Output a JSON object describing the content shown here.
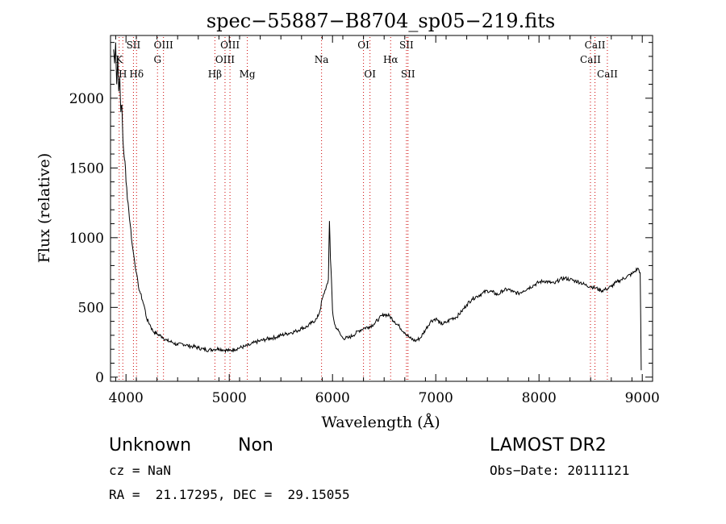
{
  "chart_data": {
    "type": "line",
    "title": "spec−55887−B8704_sp05−219.fits",
    "xlabel": "Wavelength (Å)",
    "ylabel": "Flux (relative)",
    "xlim": [
      3850,
      9100
    ],
    "ylim": [
      -30,
      2450
    ],
    "x_ticks": [
      4000,
      5000,
      6000,
      7000,
      8000,
      9000
    ],
    "y_ticks": [
      0,
      500,
      1000,
      1500,
      2000
    ],
    "grid": false,
    "series": [
      {
        "x": [
          3880,
          3890,
          3900,
          3910,
          3920,
          3930,
          3940,
          3950,
          3960,
          3970,
          3980,
          3990,
          4000,
          4020,
          4040,
          4060,
          4080,
          4100,
          4120,
          4140,
          4160,
          4180,
          4200,
          4230,
          4260,
          4300,
          4350,
          4400,
          4450,
          4500,
          4550,
          4600,
          4650,
          4700,
          4750,
          4800,
          4850,
          4900,
          4950,
          5000,
          5050,
          5100,
          5150,
          5200,
          5250,
          5300,
          5350,
          5400,
          5450,
          5500,
          5550,
          5600,
          5650,
          5700,
          5750,
          5800,
          5850,
          5880,
          5900,
          5920,
          5940,
          5960,
          5970,
          5980,
          5990,
          6000,
          6010,
          6020,
          6040,
          6060,
          6080,
          6100,
          6150,
          6200,
          6250,
          6300,
          6350,
          6400,
          6450,
          6500,
          6550,
          6600,
          6650,
          6700,
          6750,
          6800,
          6850,
          6900,
          6950,
          7000,
          7050,
          7100,
          7150,
          7200,
          7250,
          7300,
          7350,
          7400,
          7450,
          7500,
          7550,
          7600,
          7650,
          7700,
          7750,
          7800,
          7850,
          7900,
          7950,
          8000,
          8050,
          8100,
          8150,
          8200,
          8250,
          8300,
          8350,
          8400,
          8450,
          8500,
          8550,
          8600,
          8650,
          8700,
          8750,
          8800,
          8850,
          8900,
          8930,
          8960,
          8980,
          8990
        ],
        "y": [
          2350,
          2250,
          2400,
          2100,
          2300,
          2050,
          2150,
          1900,
          1950,
          1700,
          1600,
          1550,
          1400,
          1250,
          1100,
          950,
          850,
          750,
          650,
          600,
          550,
          500,
          420,
          380,
          330,
          310,
          290,
          260,
          250,
          230,
          240,
          225,
          220,
          210,
          200,
          195,
          200,
          205,
          195,
          190,
          200,
          210,
          220,
          230,
          250,
          260,
          270,
          280,
          285,
          300,
          310,
          320,
          330,
          350,
          360,
          390,
          420,
          480,
          560,
          600,
          650,
          700,
          1120,
          850,
          700,
          480,
          420,
          380,
          350,
          330,
          300,
          280,
          280,
          300,
          330,
          350,
          360,
          380,
          420,
          450,
          440,
          400,
          360,
          320,
          280,
          260,
          280,
          340,
          400,
          420,
          380,
          390,
          420,
          430,
          470,
          520,
          560,
          580,
          600,
          620,
          610,
          590,
          620,
          630,
          610,
          600,
          620,
          640,
          660,
          680,
          690,
          680,
          670,
          700,
          710,
          700,
          690,
          680,
          660,
          650,
          640,
          620,
          630,
          650,
          680,
          700,
          720,
          740,
          760,
          780,
          750,
          50
        ]
      }
    ],
    "lines": [
      {
        "name": "K",
        "x": 3934,
        "row": 1
      },
      {
        "name": "H",
        "x": 3969,
        "row": 2
      },
      {
        "name": "SII",
        "x": 4072,
        "row": 0
      },
      {
        "name": "Hδ",
        "x": 4102,
        "row": 2
      },
      {
        "name": "OIII",
        "x": 4363,
        "row": 0
      },
      {
        "name": "G",
        "x": 4305,
        "row": 1
      },
      {
        "name": "Hβ",
        "x": 4861,
        "row": 2
      },
      {
        "name": "OIII",
        "x": 4959,
        "row": 1
      },
      {
        "name": "OIII",
        "x": 5007,
        "row": 0
      },
      {
        "name": "Mg",
        "x": 5175,
        "row": 2
      },
      {
        "name": "Na",
        "x": 5894,
        "row": 1
      },
      {
        "name": "OI",
        "x": 6300,
        "row": 0
      },
      {
        "name": "OI",
        "x": 6363,
        "row": 2
      },
      {
        "name": "Hα",
        "x": 6563,
        "row": 1
      },
      {
        "name": "SII",
        "x": 6716,
        "row": 0
      },
      {
        "name": "SII",
        "x": 6731,
        "row": 2
      },
      {
        "name": "CaII",
        "x": 8498,
        "row": 1
      },
      {
        "name": "CaII",
        "x": 8542,
        "row": 0
      },
      {
        "name": "CaII",
        "x": 8662,
        "row": 2
      }
    ]
  },
  "info": {
    "class_name": "Unknown",
    "subclass": "Non",
    "survey": "LAMOST DR2",
    "cz": "cz = NaN",
    "obs_date": "Obs−Date: 20111121",
    "coords": "RA =  21.17295, DEC =  29.15055"
  }
}
